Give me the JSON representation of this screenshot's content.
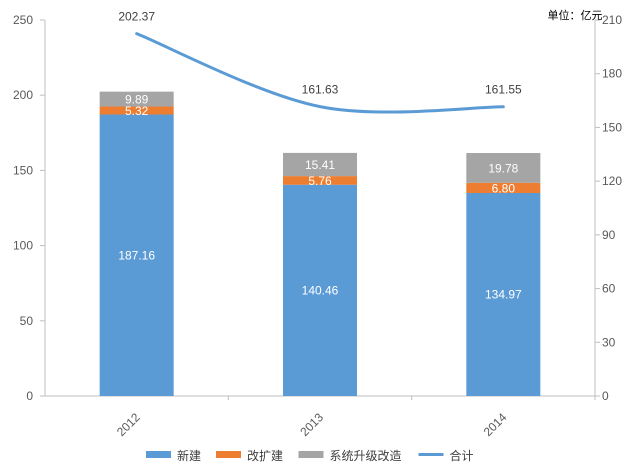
{
  "chart_data": {
    "type": "bar",
    "stacked": true,
    "unit_label": "单位：亿元",
    "categories": [
      "2012",
      "2013",
      "2014"
    ],
    "series": [
      {
        "name": "新建",
        "values": [
          187.16,
          140.46,
          134.97
        ],
        "color": "#5B9BD5"
      },
      {
        "name": "改扩建",
        "values": [
          5.32,
          5.76,
          6.8
        ],
        "color": "#ED7D31"
      },
      {
        "name": "系统升级改造",
        "values": [
          9.89,
          15.41,
          19.78
        ],
        "color": "#A5A5A5"
      }
    ],
    "total_series": {
      "name": "合计",
      "values": [
        202.37,
        161.63,
        161.55
      ],
      "color": "#5B9BD5",
      "type": "line",
      "axis": "right"
    },
    "y_left": {
      "min": 0,
      "max": 250,
      "ticks": [
        0,
        50,
        100,
        150,
        200,
        250
      ]
    },
    "y_right": {
      "min": 0,
      "max": 210,
      "ticks": [
        0,
        30,
        60,
        90,
        120,
        150,
        180,
        210
      ]
    },
    "grid": false,
    "legend_position": "bottom"
  }
}
